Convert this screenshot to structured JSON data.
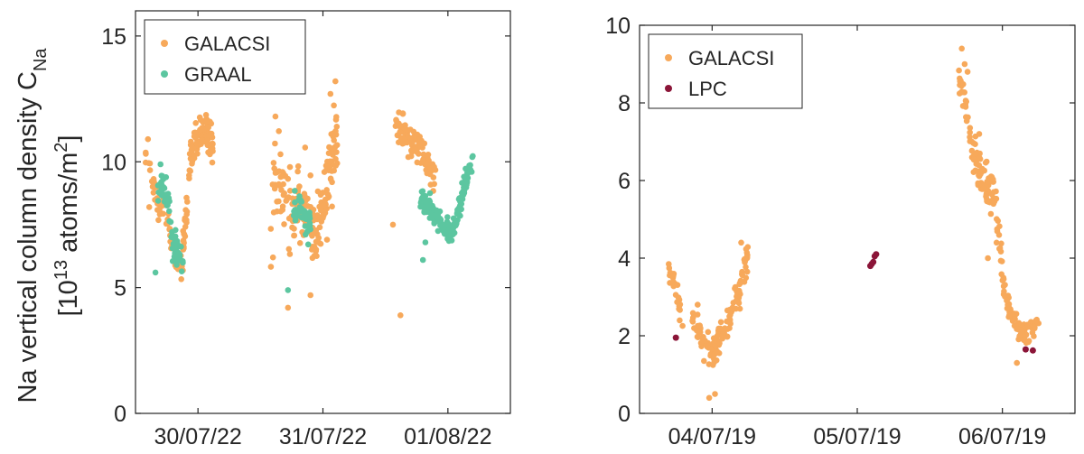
{
  "chart_data": [
    {
      "type": "scatter",
      "ylabel_line1": "Na vertical column density C",
      "ylabel_line1_sub": "Na",
      "ylabel_line2": "[10",
      "ylabel_line2_sup": "13",
      "ylabel_line2_mid": " atoms/m",
      "ylabel_line2_sup2": "2",
      "ylabel_line2_end": "]",
      "xlim": [
        0,
        3
      ],
      "ylim": [
        0,
        16
      ],
      "yticks": [
        0,
        5,
        10,
        15
      ],
      "xticks": [
        {
          "pos": 0.5,
          "label": "30/07/22"
        },
        {
          "pos": 1.5,
          "label": "31/07/22"
        },
        {
          "pos": 2.5,
          "label": "01/08/22"
        }
      ],
      "legend_position": "top-left",
      "series": [
        {
          "name": "GALACSI",
          "color": "#F7A95B",
          "clusters": [
            {
              "x0": 0.08,
              "x1": 0.38,
              "trend": [
                [
                  0.08,
                  10.5
                ],
                [
                  0.12,
                  9.5
                ],
                [
                  0.16,
                  8.7
                ],
                [
                  0.2,
                  8.2
                ],
                [
                  0.24,
                  8.0
                ],
                [
                  0.27,
                  7.6
                ],
                [
                  0.3,
                  6.6
                ],
                [
                  0.33,
                  6.2
                ],
                [
                  0.36,
                  5.9
                ],
                [
                  0.38,
                  5.8
                ]
              ],
              "n": 60,
              "spread": 0.5
            },
            {
              "x0": 0.38,
              "x1": 0.62,
              "trend": [
                [
                  0.38,
                  6.5
                ],
                [
                  0.41,
                  8.0
                ],
                [
                  0.44,
                  10.2
                ],
                [
                  0.48,
                  10.8
                ],
                [
                  0.52,
                  11.2
                ],
                [
                  0.56,
                  11.3
                ],
                [
                  0.6,
                  11.0
                ],
                [
                  0.62,
                  10.6
                ]
              ],
              "n": 120,
              "spread": 0.55
            },
            {
              "x0": 1.08,
              "x1": 1.38,
              "trend": [
                [
                  1.08,
                  8.5
                ],
                [
                  1.14,
                  9.2
                ],
                [
                  1.2,
                  8.8
                ],
                [
                  1.26,
                  8.0
                ],
                [
                  1.32,
                  8.2
                ],
                [
                  1.38,
                  8.4
                ]
              ],
              "n": 80,
              "spread": 1.3
            },
            {
              "x0": 1.4,
              "x1": 1.62,
              "trend": [
                [
                  1.4,
                  7.5
                ],
                [
                  1.45,
                  7.0
                ],
                [
                  1.5,
                  8.0
                ],
                [
                  1.55,
                  9.5
                ],
                [
                  1.6,
                  10.5
                ],
                [
                  1.62,
                  11.0
                ]
              ],
              "n": 100,
              "spread": 1.2
            },
            {
              "x0": 2.08,
              "x1": 2.4,
              "trend": [
                [
                  2.08,
                  11.4
                ],
                [
                  2.14,
                  11.2
                ],
                [
                  2.2,
                  10.8
                ],
                [
                  2.26,
                  10.5
                ],
                [
                  2.32,
                  10.0
                ],
                [
                  2.4,
                  9.5
                ]
              ],
              "n": 100,
              "spread": 0.5
            }
          ],
          "extra_points": [
            [
              0.1,
              10.9
            ],
            [
              0.11,
              8.2
            ],
            [
              1.12,
              11.8
            ],
            [
              1.16,
              10.3
            ],
            [
              1.22,
              4.2
            ],
            [
              1.4,
              4.7
            ],
            [
              1.6,
              13.2
            ],
            [
              1.56,
              12.7
            ],
            [
              2.06,
              7.5
            ],
            [
              2.12,
              3.9
            ],
            [
              1.1,
              6.2
            ]
          ]
        },
        {
          "name": "GRAAL",
          "color": "#5CC6A0",
          "clusters": [
            {
              "x0": 0.18,
              "x1": 0.38,
              "trend": [
                [
                  0.18,
                  8.6
                ],
                [
                  0.22,
                  9.0
                ],
                [
                  0.26,
                  8.4
                ],
                [
                  0.3,
                  7.0
                ],
                [
                  0.34,
                  6.2
                ],
                [
                  0.38,
                  6.0
                ]
              ],
              "n": 70,
              "spread": 0.6
            },
            {
              "x0": 1.26,
              "x1": 1.4,
              "trend": [
                [
                  1.26,
                  8.0
                ],
                [
                  1.3,
                  7.8
                ],
                [
                  1.34,
                  8.2
                ],
                [
                  1.38,
                  7.5
                ],
                [
                  1.4,
                  7.6
                ]
              ],
              "n": 50,
              "spread": 0.5
            },
            {
              "x0": 2.28,
              "x1": 2.7,
              "trend": [
                [
                  2.28,
                  8.6
                ],
                [
                  2.34,
                  8.2
                ],
                [
                  2.4,
                  7.8
                ],
                [
                  2.46,
                  7.4
                ],
                [
                  2.52,
                  7.2
                ],
                [
                  2.56,
                  7.6
                ],
                [
                  2.6,
                  8.4
                ],
                [
                  2.64,
                  9.2
                ],
                [
                  2.68,
                  9.8
                ],
                [
                  2.7,
                  10.0
                ]
              ],
              "n": 180,
              "spread": 0.35
            }
          ],
          "extra_points": [
            [
              0.16,
              5.6
            ],
            [
              0.2,
              9.9
            ],
            [
              1.22,
              4.9
            ],
            [
              2.3,
              6.1
            ],
            [
              2.32,
              6.8
            ]
          ]
        }
      ]
    },
    {
      "type": "scatter",
      "xlim": [
        0,
        3
      ],
      "ylim": [
        0,
        10
      ],
      "yticks": [
        0,
        2,
        4,
        6,
        8,
        10
      ],
      "xticks": [
        {
          "pos": 0.5,
          "label": "04/07/19"
        },
        {
          "pos": 1.5,
          "label": "05/07/19"
        },
        {
          "pos": 2.5,
          "label": "06/07/19"
        }
      ],
      "legend_position": "top-left",
      "series": [
        {
          "name": "GALACSI",
          "color": "#F7A95B",
          "clusters": [
            {
              "x0": 0.2,
              "x1": 0.3,
              "trend": [
                [
                  0.2,
                  3.8
                ],
                [
                  0.22,
                  3.4
                ],
                [
                  0.25,
                  3.2
                ],
                [
                  0.28,
                  2.6
                ],
                [
                  0.3,
                  2.3
                ]
              ],
              "n": 25,
              "spread": 0.25
            },
            {
              "x0": 0.35,
              "x1": 0.55,
              "trend": [
                [
                  0.35,
                  2.8
                ],
                [
                  0.4,
                  2.2
                ],
                [
                  0.44,
                  1.8
                ],
                [
                  0.48,
                  1.5
                ],
                [
                  0.52,
                  1.6
                ],
                [
                  0.55,
                  2.0
                ]
              ],
              "n": 60,
              "spread": 0.35
            },
            {
              "x0": 0.55,
              "x1": 0.75,
              "trend": [
                [
                  0.55,
                  2.0
                ],
                [
                  0.6,
                  2.2
                ],
                [
                  0.65,
                  2.8
                ],
                [
                  0.7,
                  3.4
                ],
                [
                  0.75,
                  4.2
                ]
              ],
              "n": 70,
              "spread": 0.35
            },
            {
              "x0": 2.2,
              "x1": 2.5,
              "trend": [
                [
                  2.2,
                  8.6
                ],
                [
                  2.24,
                  8.0
                ],
                [
                  2.28,
                  7.0
                ],
                [
                  2.32,
                  6.5
                ],
                [
                  2.36,
                  6.0
                ],
                [
                  2.4,
                  5.8
                ],
                [
                  2.44,
                  5.7
                ],
                [
                  2.48,
                  4.5
                ],
                [
                  2.5,
                  3.8
                ]
              ],
              "n": 110,
              "spread": 0.45
            },
            {
              "x0": 2.5,
              "x1": 2.75,
              "trend": [
                [
                  2.5,
                  3.5
                ],
                [
                  2.55,
                  2.6
                ],
                [
                  2.6,
                  2.2
                ],
                [
                  2.65,
                  2.0
                ],
                [
                  2.7,
                  2.1
                ],
                [
                  2.75,
                  2.3
                ]
              ],
              "n": 80,
              "spread": 0.25
            }
          ],
          "extra_points": [
            [
              2.22,
              9.4
            ],
            [
              2.24,
              9.0
            ],
            [
              2.26,
              8.8
            ],
            [
              2.34,
              7.2
            ],
            [
              2.4,
              4.0
            ],
            [
              2.6,
              1.3
            ],
            [
              0.48,
              0.4
            ],
            [
              0.52,
              0.5
            ],
            [
              0.7,
              4.4
            ],
            [
              0.4,
              2.8
            ]
          ]
        },
        {
          "name": "LPC",
          "color": "#8B1538",
          "points": [
            [
              0.25,
              1.95
            ],
            [
              1.59,
              3.8
            ],
            [
              1.6,
              3.85
            ],
            [
              1.61,
              3.9
            ],
            [
              1.62,
              4.05
            ],
            [
              1.63,
              4.1
            ],
            [
              2.66,
              1.65
            ],
            [
              2.71,
              1.62
            ]
          ]
        }
      ]
    }
  ]
}
